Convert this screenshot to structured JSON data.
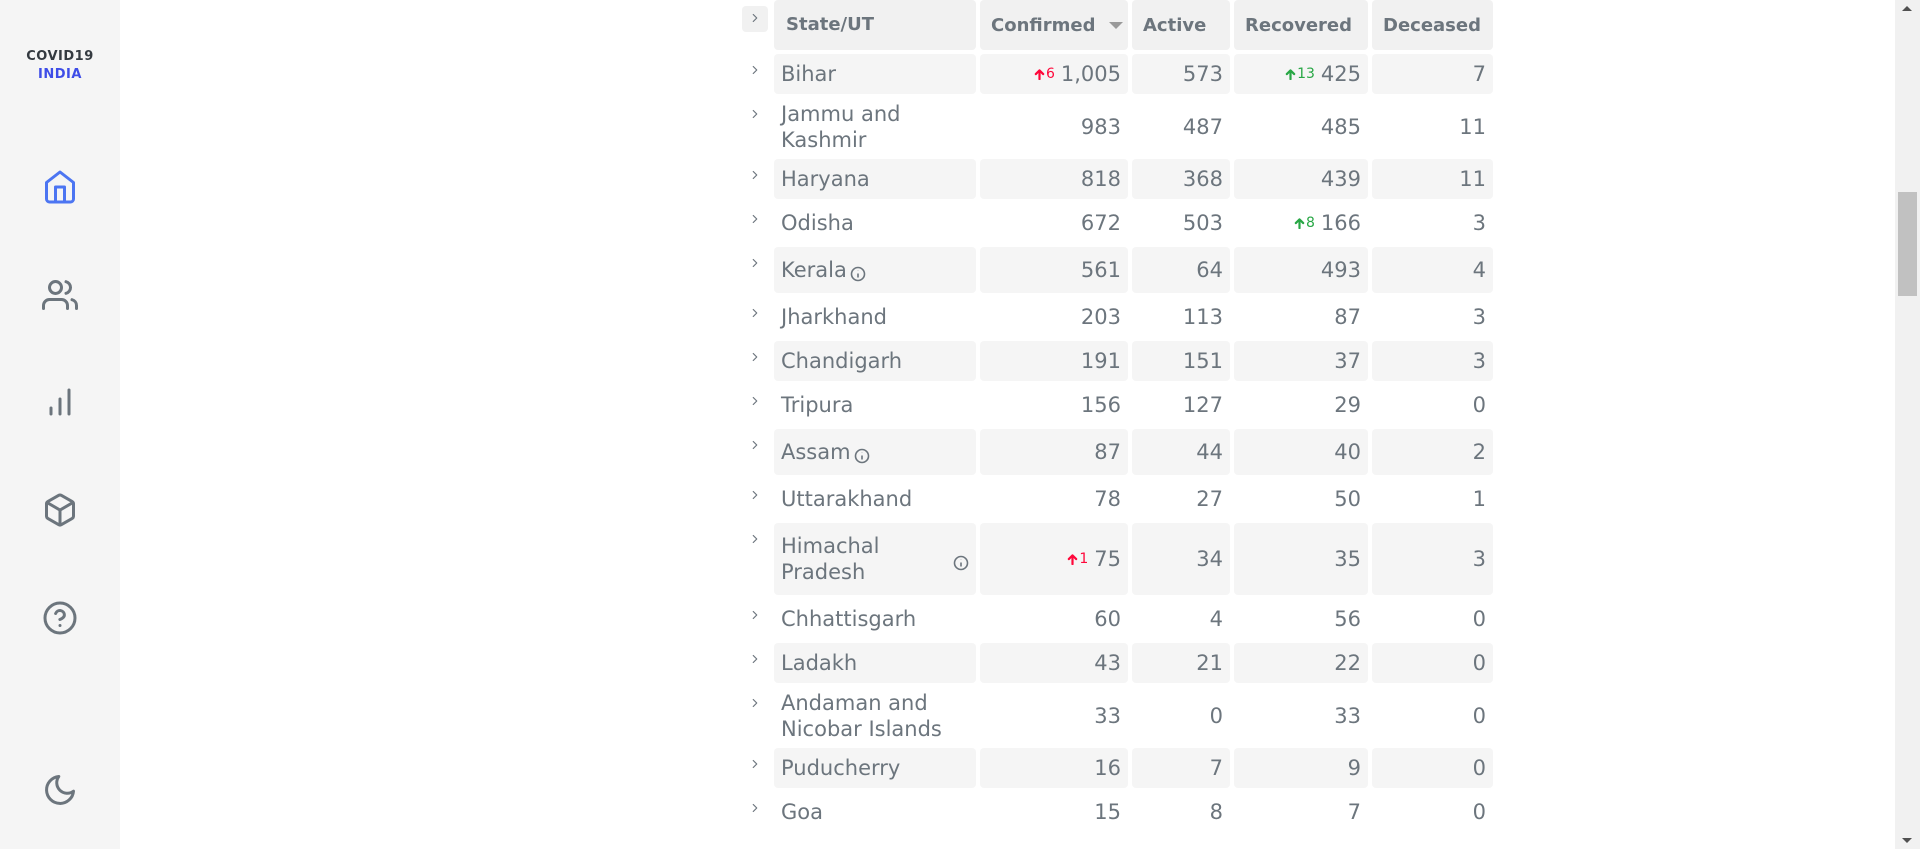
{
  "brand": {
    "line1": "COVID19",
    "line2": "INDIA",
    "accent_color": "#3e4de7"
  },
  "nav": [
    {
      "icon": "home-icon",
      "label": "Home",
      "active": true
    },
    {
      "icon": "users-icon",
      "label": "Demographics"
    },
    {
      "icon": "bar-chart-icon",
      "label": "Deep Dive"
    },
    {
      "icon": "package-icon",
      "label": "Essentials"
    },
    {
      "icon": "help-circle-icon",
      "label": "FAQ"
    },
    {
      "icon": "moon-icon",
      "label": "Dark mode"
    }
  ],
  "table": {
    "headers": {
      "state": "State/UT",
      "confirmed": "Confirmed",
      "active": "Active",
      "recovered": "Recovered",
      "deceased": "Deceased"
    },
    "rows": [
      {
        "name": "Bihar",
        "confirmed": "1,005",
        "confirmed_delta": "6",
        "active": "573",
        "recovered": "425",
        "recovered_delta": "13",
        "deceased": "7"
      },
      {
        "name": "Jammu and Kashmir",
        "confirmed": "983",
        "active": "487",
        "recovered": "485",
        "deceased": "11"
      },
      {
        "name": "Haryana",
        "confirmed": "818",
        "active": "368",
        "recovered": "439",
        "deceased": "11"
      },
      {
        "name": "Odisha",
        "confirmed": "672",
        "active": "503",
        "recovered": "166",
        "recovered_delta": "8",
        "deceased": "3"
      },
      {
        "name": "Kerala",
        "info": true,
        "confirmed": "561",
        "active": "64",
        "recovered": "493",
        "deceased": "4"
      },
      {
        "name": "Jharkhand",
        "confirmed": "203",
        "active": "113",
        "recovered": "87",
        "deceased": "3"
      },
      {
        "name": "Chandigarh",
        "confirmed": "191",
        "active": "151",
        "recovered": "37",
        "deceased": "3"
      },
      {
        "name": "Tripura",
        "confirmed": "156",
        "active": "127",
        "recovered": "29",
        "deceased": "0"
      },
      {
        "name": "Assam",
        "info": true,
        "confirmed": "87",
        "active": "44",
        "recovered": "40",
        "deceased": "2"
      },
      {
        "name": "Uttarakhand",
        "confirmed": "78",
        "active": "27",
        "recovered": "50",
        "deceased": "1"
      },
      {
        "name": "Himachal Pradesh",
        "info": true,
        "confirmed": "75",
        "confirmed_delta": "1",
        "active": "34",
        "recovered": "35",
        "deceased": "3"
      },
      {
        "name": "Chhattisgarh",
        "confirmed": "60",
        "active": "4",
        "recovered": "56",
        "deceased": "0"
      },
      {
        "name": "Ladakh",
        "confirmed": "43",
        "active": "21",
        "recovered": "22",
        "deceased": "0"
      },
      {
        "name": "Andaman and Nicobar Islands",
        "confirmed": "33",
        "active": "0",
        "recovered": "33",
        "deceased": "0"
      },
      {
        "name": "Puducherry",
        "confirmed": "16",
        "active": "7",
        "recovered": "9",
        "deceased": "0"
      },
      {
        "name": "Goa",
        "confirmed": "15",
        "active": "8",
        "recovered": "7",
        "deceased": "0"
      }
    ]
  },
  "colors": {
    "confirmed_delta": "#ff073a",
    "recovered_delta": "#28a745"
  }
}
